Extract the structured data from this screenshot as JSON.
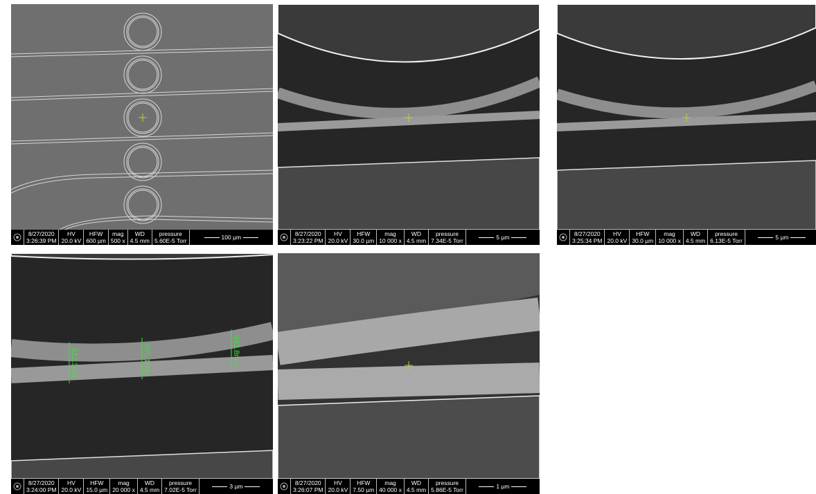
{
  "info_headers": [
    "HV",
    "HFW",
    "mag",
    "WD",
    "pressure"
  ],
  "panels": [
    {
      "date": "8/27/2020",
      "time": "3:26:39 PM",
      "hv": "20.0 kV",
      "hfw": "600 µm",
      "mag": "500 x",
      "wd": "4.5 mm",
      "pressure": "5.60E-5 Torr",
      "scale": "100 µm"
    },
    {
      "date": "8/27/2020",
      "time": "3:23:22 PM",
      "hv": "20.0 kV",
      "hfw": "30.0 µm",
      "mag": "10 000 x",
      "wd": "4.5 mm",
      "pressure": "7.34E-5 Torr",
      "scale": "5 µm"
    },
    {
      "date": "8/27/2020",
      "time": "3:25:34 PM",
      "hv": "20.0 kV",
      "hfw": "30.0 µm",
      "mag": "10 000 x",
      "wd": "4.5 mm",
      "pressure": "6.13E-5 Torr",
      "scale": "5 µm"
    },
    {
      "date": "8/27/2020",
      "time": "3:24:00 PM",
      "hv": "20.0 kV",
      "hfw": "15.0 µm",
      "mag": "20 000 x",
      "wd": "4.5 mm",
      "pressure": "7.02E-5 Torr",
      "scale": "3 µm",
      "annotations": [
        "322.3nm",
        "305.1nm",
        "541.8nm"
      ]
    },
    {
      "date": "8/27/2020",
      "time": "3:26:07 PM",
      "hv": "20.0 kV",
      "hfw": "7.50 µm",
      "mag": "40 000 x",
      "wd": "4.5 mm",
      "pressure": "5.86E-5 Torr",
      "scale": "1 µm"
    }
  ]
}
